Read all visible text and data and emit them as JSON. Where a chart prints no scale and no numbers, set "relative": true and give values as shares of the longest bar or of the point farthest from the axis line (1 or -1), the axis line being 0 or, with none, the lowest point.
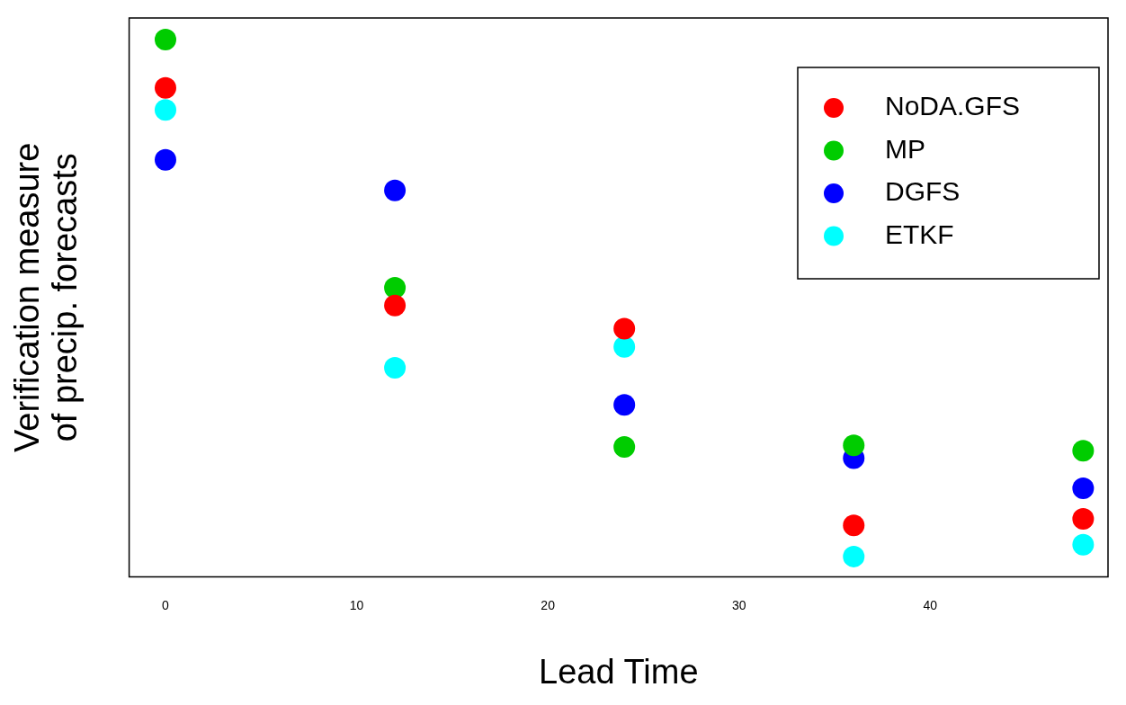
{
  "chart_data": {
    "type": "scatter",
    "xlabel": "Lead Time",
    "ylabel": "Verification measure\nof precip. forecasts",
    "relative": true,
    "x": [
      0,
      12,
      24,
      36,
      48
    ],
    "xlim": [
      -1.9,
      49.3
    ],
    "xticks": [
      0,
      10,
      20,
      30,
      40
    ],
    "legend": "top right",
    "marker": "circle",
    "grid": false,
    "series": [
      {
        "name": "NoDA.GFS",
        "color": "#ff0000",
        "values": [
          0.91,
          0.505,
          0.462,
          0.096,
          0.108
        ]
      },
      {
        "name": "MP",
        "color": "#00cc00",
        "values": [
          1.0,
          0.538,
          0.242,
          0.245,
          0.235
        ]
      },
      {
        "name": "DGFS",
        "color": "#0000ff",
        "values": [
          0.776,
          0.719,
          0.32,
          0.221,
          0.165
        ]
      },
      {
        "name": "ETKF",
        "color": "#00ffff",
        "values": [
          0.869,
          0.389,
          0.428,
          0.038,
          0.06
        ]
      }
    ]
  }
}
